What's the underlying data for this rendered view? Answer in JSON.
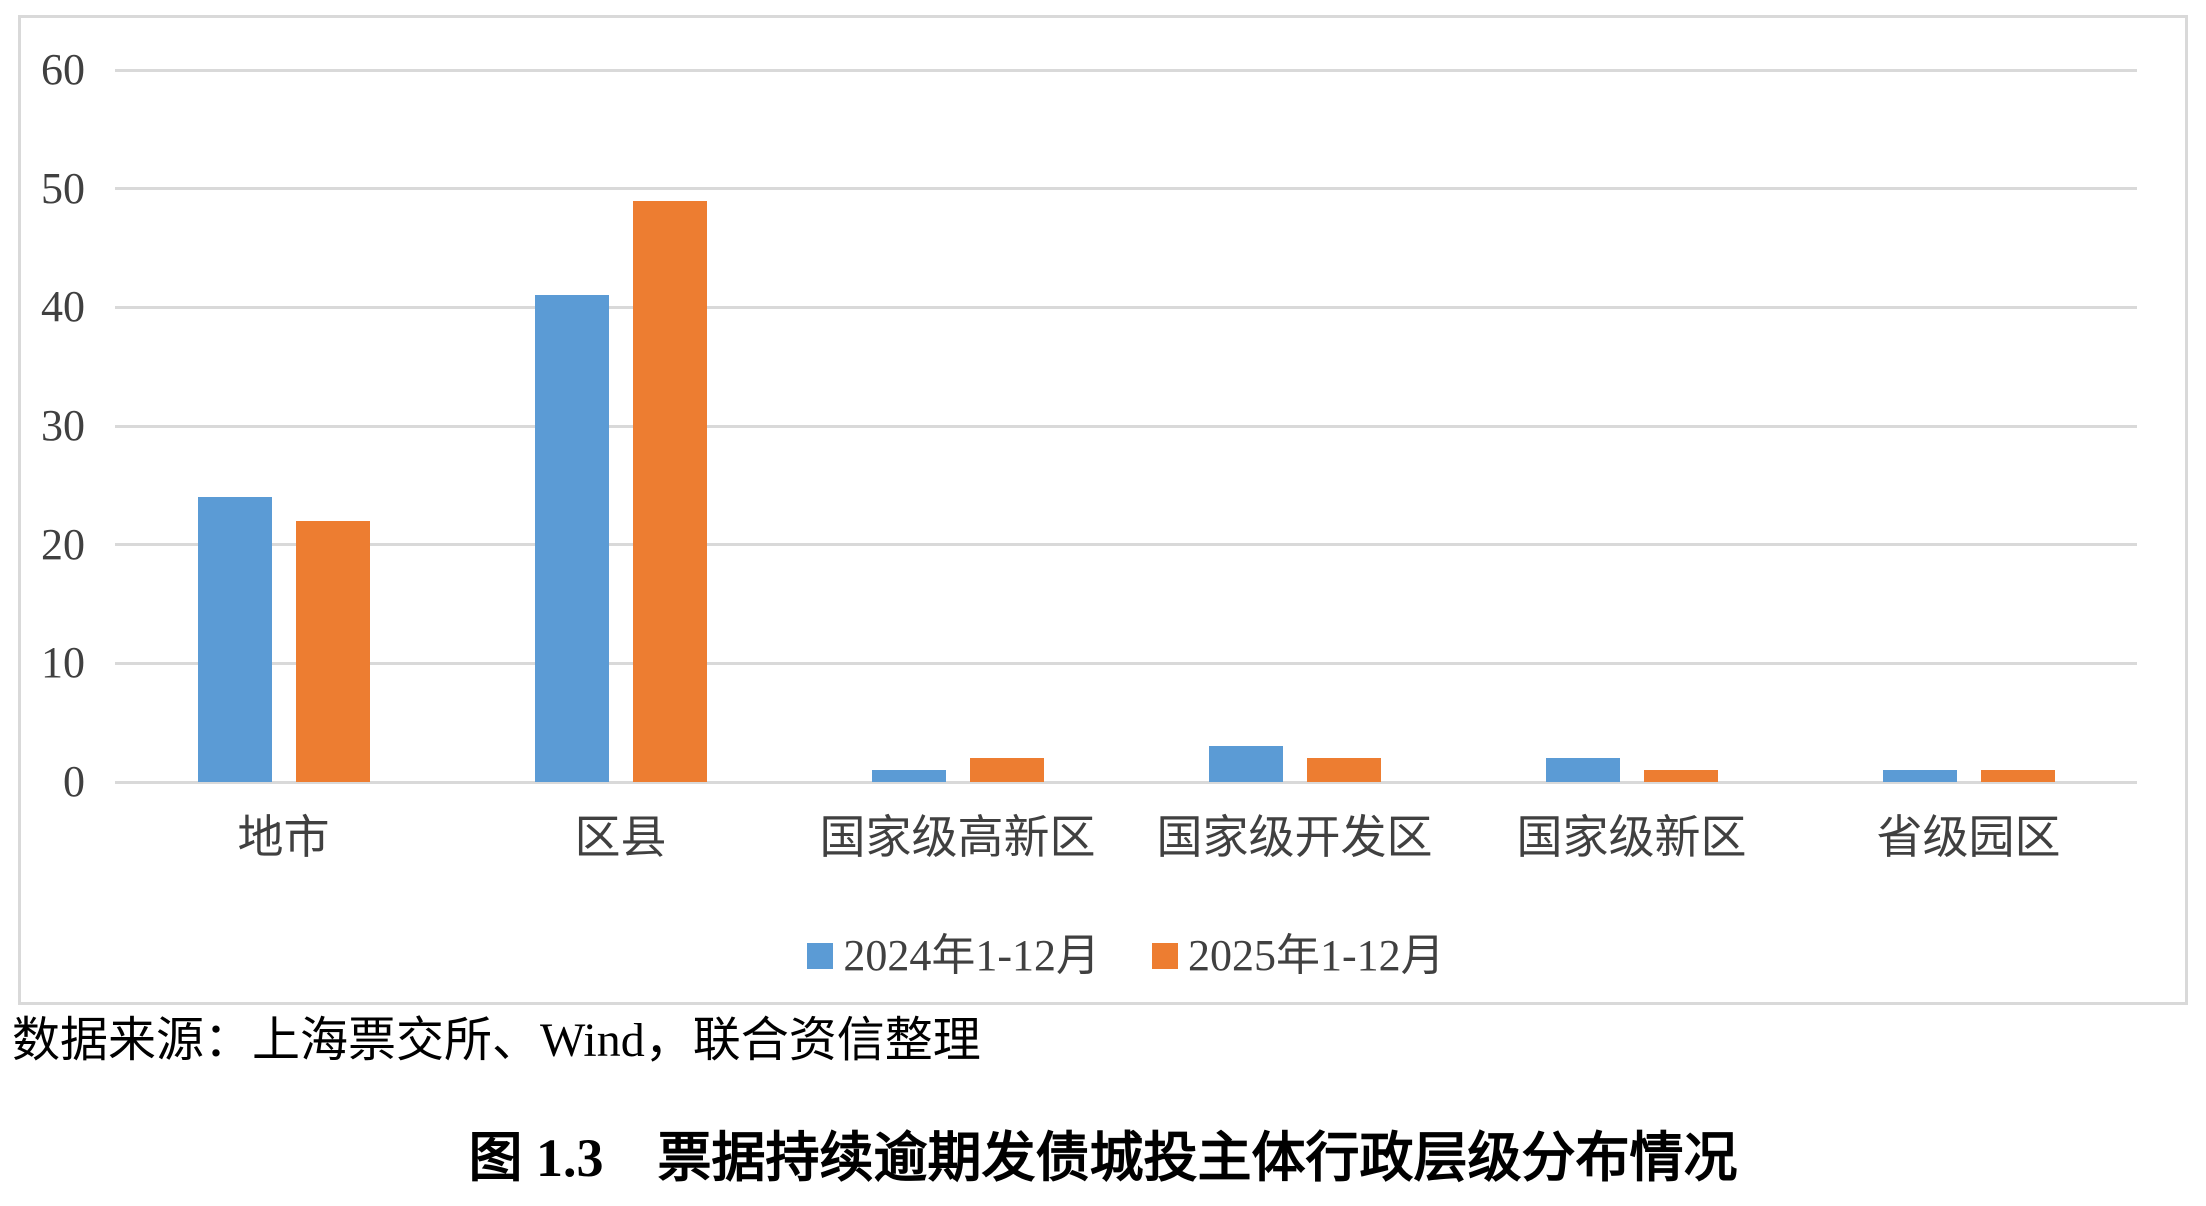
{
  "figure": {
    "source_note": "数据来源：上海票交所、Wind，联合资信整理",
    "caption": "图 1.3　票据持续逾期发债城投主体行政层级分布情况"
  },
  "chart_data": {
    "type": "bar",
    "title": "",
    "xlabel": "",
    "ylabel": "",
    "categories": [
      "地市",
      "区县",
      "国家级高新区",
      "国家级开发区",
      "国家级新区",
      "省级园区"
    ],
    "series": [
      {
        "name": "2024年1-12月",
        "color": "#5B9BD5",
        "values": [
          24,
          41,
          1,
          3,
          2,
          1
        ]
      },
      {
        "name": "2025年1-12月",
        "color": "#ED7D31",
        "values": [
          22,
          49,
          2,
          2,
          1,
          1
        ]
      }
    ],
    "ylim": [
      0,
      60
    ],
    "yticks": [
      0,
      10,
      20,
      30,
      40,
      50,
      60
    ],
    "grid": true,
    "gridline_color": "#D9D9D9",
    "axis_text_color": "#404040",
    "legend_position": "bottom"
  }
}
